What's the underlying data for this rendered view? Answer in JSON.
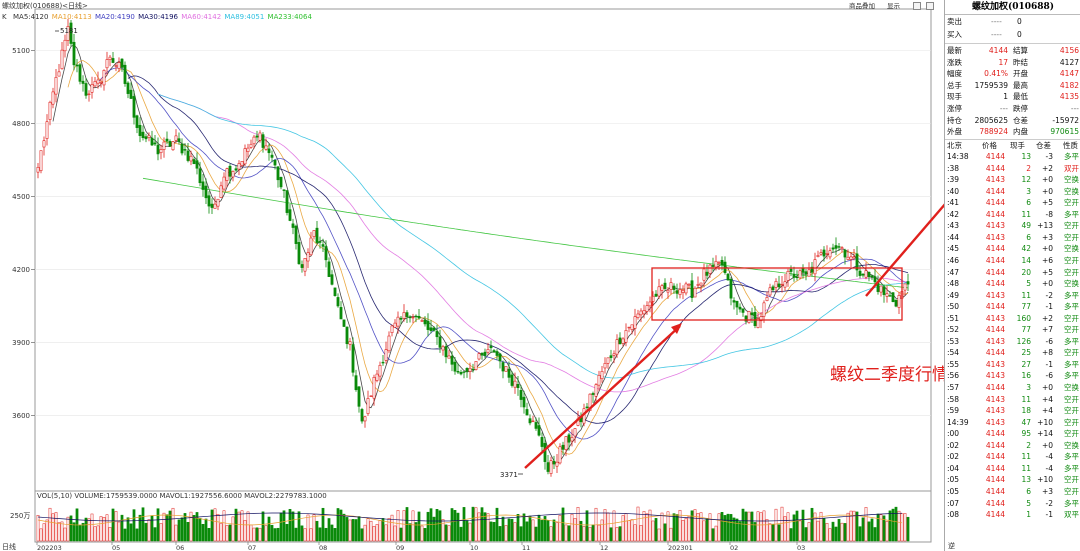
{
  "header": {
    "symbol_tag": "螺纹加权(010688)<日线>",
    "k_label": "K",
    "ma_labels": [
      {
        "text": "MA5:4120",
        "color": "#333333"
      },
      {
        "text": "MA10:4113",
        "color": "#e8a030"
      },
      {
        "text": "MA20:4190",
        "color": "#4040c0"
      },
      {
        "text": "MA30:4196",
        "color": "#101060"
      },
      {
        "text": "MA60:4142",
        "color": "#e070e0"
      },
      {
        "text": "MA89:4051",
        "color": "#30c0e0"
      },
      {
        "text": "MA233:4064",
        "color": "#30c030"
      }
    ],
    "buttons": [
      "商品叠加",
      "显示",
      "",
      ""
    ]
  },
  "volume_header": {
    "text": "VOL(5,10) VOLUME:1759539.0000 MAVOL1:1927556.6000 MAVOL2:2279783.1000",
    "axis_label": "250万"
  },
  "bottom": {
    "tab": "日线",
    "corner": "逆"
  },
  "annotation": {
    "text": "螺纹二季度行情展望",
    "color": "#e0201c"
  },
  "chart_data": {
    "type": "candlestick",
    "price_ylim": [
      3371,
      5181
    ],
    "y_ticks": [
      5100,
      4800,
      4500,
      4200,
      3900,
      3600
    ],
    "x_ticks": [
      "202203",
      "05",
      "06",
      "07",
      "08",
      "09",
      "10",
      "11",
      "12",
      "202301",
      "02",
      "03"
    ],
    "labels": {
      "high": "5181",
      "low": "3371"
    },
    "anchors": [
      [
        0,
        4620
      ],
      [
        6,
        4980
      ],
      [
        10,
        5181
      ],
      [
        12,
        5050
      ],
      [
        16,
        4930
      ],
      [
        20,
        4960
      ],
      [
        24,
        5080
      ],
      [
        28,
        5010
      ],
      [
        34,
        4760
      ],
      [
        40,
        4690
      ],
      [
        46,
        4730
      ],
      [
        52,
        4640
      ],
      [
        58,
        4430
      ],
      [
        62,
        4600
      ],
      [
        66,
        4620
      ],
      [
        70,
        4700
      ],
      [
        74,
        4750
      ],
      [
        78,
        4660
      ],
      [
        82,
        4500
      ],
      [
        88,
        4200
      ],
      [
        92,
        4350
      ],
      [
        96,
        4240
      ],
      [
        100,
        4030
      ],
      [
        104,
        3880
      ],
      [
        108,
        3560
      ],
      [
        112,
        3740
      ],
      [
        118,
        3950
      ],
      [
        124,
        4030
      ],
      [
        128,
        3980
      ],
      [
        134,
        3900
      ],
      [
        140,
        3770
      ],
      [
        146,
        3820
      ],
      [
        152,
        3870
      ],
      [
        156,
        3780
      ],
      [
        160,
        3720
      ],
      [
        164,
        3590
      ],
      [
        168,
        3480
      ],
      [
        170,
        3371
      ],
      [
        174,
        3450
      ],
      [
        180,
        3560
      ],
      [
        188,
        3780
      ],
      [
        194,
        3920
      ],
      [
        200,
        4010
      ],
      [
        206,
        4100
      ],
      [
        212,
        4130
      ],
      [
        218,
        4110
      ],
      [
        222,
        4180
      ],
      [
        228,
        4220
      ],
      [
        232,
        4050
      ],
      [
        236,
        4010
      ],
      [
        240,
        3990
      ],
      [
        244,
        4100
      ],
      [
        248,
        4160
      ],
      [
        252,
        4180
      ],
      [
        256,
        4170
      ],
      [
        260,
        4240
      ],
      [
        264,
        4300
      ],
      [
        268,
        4290
      ],
      [
        270,
        4260
      ],
      [
        274,
        4200
      ],
      [
        278,
        4160
      ],
      [
        282,
        4100
      ],
      [
        286,
        4070
      ],
      [
        290,
        4144
      ]
    ]
  },
  "panel": {
    "title": "螺纹加权(010688)",
    "order_book": [
      {
        "label": "卖出",
        "dash": "----",
        "value": "0"
      },
      {
        "label": "买入",
        "dash": "----",
        "value": "0"
      }
    ],
    "stats": [
      {
        "l1": "最新",
        "v1": "4144",
        "c1": "red",
        "l2": "结算",
        "v2": "4156",
        "c2": "red"
      },
      {
        "l1": "涨跌",
        "v1": "17",
        "c1": "red",
        "l2": "昨结",
        "v2": "4127",
        "c2": "black"
      },
      {
        "l1": "幅度",
        "v1": "0.41%",
        "c1": "red",
        "l2": "开盘",
        "v2": "4147",
        "c2": "red"
      },
      {
        "l1": "总手",
        "v1": "1759539",
        "c1": "black",
        "l2": "最高",
        "v2": "4182",
        "c2": "red"
      },
      {
        "l1": "现手",
        "v1": "1",
        "c1": "black",
        "l2": "最低",
        "v2": "4135",
        "c2": "red"
      },
      {
        "l1": "涨停",
        "v1": "---",
        "c1": "gray",
        "l2": "跌停",
        "v2": "---",
        "c2": "gray"
      },
      {
        "l1": "持仓",
        "v1": "2805625",
        "c1": "black",
        "l2": "仓差",
        "v2": "-15972",
        "c2": "black"
      },
      {
        "l1": "外盘",
        "v1": "788924",
        "c1": "red",
        "l2": "内盘",
        "v2": "970615",
        "c2": "green"
      }
    ],
    "ticks_header": [
      "北京",
      "价格",
      "现手",
      "仓差",
      "性质"
    ],
    "ticks": [
      {
        "t": "14:38",
        "p": "4144",
        "pc": "red",
        "v": "13",
        "vc": "green",
        "d": "-3",
        "n": "多平",
        "nc": "green"
      },
      {
        "t": ":38",
        "p": "4144",
        "pc": "red",
        "v": "2",
        "vc": "red",
        "d": "+2",
        "n": "双开",
        "nc": "red"
      },
      {
        "t": ":39",
        "p": "4143",
        "pc": "red",
        "v": "12",
        "vc": "green",
        "d": "+0",
        "n": "空换",
        "nc": "green"
      },
      {
        "t": ":40",
        "p": "4144",
        "pc": "red",
        "v": "3",
        "vc": "green",
        "d": "+0",
        "n": "空换",
        "nc": "green"
      },
      {
        "t": ":41",
        "p": "4144",
        "pc": "red",
        "v": "6",
        "vc": "green",
        "d": "+5",
        "n": "空开",
        "nc": "green"
      },
      {
        "t": ":42",
        "p": "4144",
        "pc": "red",
        "v": "11",
        "vc": "green",
        "d": "-8",
        "n": "多平",
        "nc": "green"
      },
      {
        "t": ":43",
        "p": "4143",
        "pc": "red",
        "v": "49",
        "vc": "green",
        "d": "+13",
        "n": "空开",
        "nc": "green"
      },
      {
        "t": ":44",
        "p": "4143",
        "pc": "red",
        "v": "6",
        "vc": "green",
        "d": "+3",
        "n": "空开",
        "nc": "green"
      },
      {
        "t": ":45",
        "p": "4144",
        "pc": "red",
        "v": "42",
        "vc": "green",
        "d": "+0",
        "n": "空换",
        "nc": "green"
      },
      {
        "t": ":46",
        "p": "4144",
        "pc": "red",
        "v": "14",
        "vc": "green",
        "d": "+6",
        "n": "空开",
        "nc": "green"
      },
      {
        "t": ":47",
        "p": "4144",
        "pc": "red",
        "v": "20",
        "vc": "green",
        "d": "+5",
        "n": "空开",
        "nc": "green"
      },
      {
        "t": ":48",
        "p": "4144",
        "pc": "red",
        "v": "5",
        "vc": "green",
        "d": "+0",
        "n": "空换",
        "nc": "green"
      },
      {
        "t": ":49",
        "p": "4143",
        "pc": "red",
        "v": "11",
        "vc": "green",
        "d": "-2",
        "n": "多平",
        "nc": "green"
      },
      {
        "t": ":50",
        "p": "4144",
        "pc": "red",
        "v": "77",
        "vc": "green",
        "d": "-1",
        "n": "多平",
        "nc": "green"
      },
      {
        "t": ":51",
        "p": "4143",
        "pc": "red",
        "v": "160",
        "vc": "green",
        "d": "+2",
        "n": "空开",
        "nc": "green"
      },
      {
        "t": ":52",
        "p": "4144",
        "pc": "red",
        "v": "77",
        "vc": "green",
        "d": "+7",
        "n": "空开",
        "nc": "green"
      },
      {
        "t": ":53",
        "p": "4143",
        "pc": "red",
        "v": "126",
        "vc": "green",
        "d": "-6",
        "n": "多平",
        "nc": "green"
      },
      {
        "t": ":54",
        "p": "4144",
        "pc": "red",
        "v": "25",
        "vc": "green",
        "d": "+8",
        "n": "空开",
        "nc": "green"
      },
      {
        "t": ":55",
        "p": "4143",
        "pc": "red",
        "v": "27",
        "vc": "green",
        "d": "-1",
        "n": "多平",
        "nc": "green"
      },
      {
        "t": ":56",
        "p": "4143",
        "pc": "red",
        "v": "16",
        "vc": "green",
        "d": "-6",
        "n": "多平",
        "nc": "green"
      },
      {
        "t": ":57",
        "p": "4144",
        "pc": "red",
        "v": "3",
        "vc": "green",
        "d": "+0",
        "n": "空换",
        "nc": "green"
      },
      {
        "t": ":58",
        "p": "4143",
        "pc": "red",
        "v": "11",
        "vc": "green",
        "d": "+4",
        "n": "空开",
        "nc": "green"
      },
      {
        "t": ":59",
        "p": "4143",
        "pc": "red",
        "v": "18",
        "vc": "green",
        "d": "+4",
        "n": "空开",
        "nc": "green"
      },
      {
        "t": "14:39",
        "p": "4143",
        "pc": "red",
        "v": "47",
        "vc": "green",
        "d": "+10",
        "n": "空开",
        "nc": "green"
      },
      {
        "t": ":00",
        "p": "4144",
        "pc": "red",
        "v": "95",
        "vc": "green",
        "d": "+14",
        "n": "空开",
        "nc": "green"
      },
      {
        "t": ":02",
        "p": "4144",
        "pc": "red",
        "v": "2",
        "vc": "green",
        "d": "+0",
        "n": "空换",
        "nc": "green"
      },
      {
        "t": ":02",
        "p": "4144",
        "pc": "red",
        "v": "11",
        "vc": "green",
        "d": "-4",
        "n": "多平",
        "nc": "green"
      },
      {
        "t": ":04",
        "p": "4144",
        "pc": "red",
        "v": "11",
        "vc": "green",
        "d": "-4",
        "n": "多平",
        "nc": "green"
      },
      {
        "t": ":05",
        "p": "4144",
        "pc": "red",
        "v": "13",
        "vc": "green",
        "d": "+10",
        "n": "空开",
        "nc": "green"
      },
      {
        "t": ":05",
        "p": "4144",
        "pc": "red",
        "v": "6",
        "vc": "green",
        "d": "+3",
        "n": "空开",
        "nc": "green"
      },
      {
        "t": ":07",
        "p": "4144",
        "pc": "red",
        "v": "5",
        "vc": "green",
        "d": "-2",
        "n": "多平",
        "nc": "green"
      },
      {
        "t": ":08",
        "p": "4144",
        "pc": "red",
        "v": "1",
        "vc": "green",
        "d": "-1",
        "n": "双平",
        "nc": "green"
      }
    ]
  }
}
